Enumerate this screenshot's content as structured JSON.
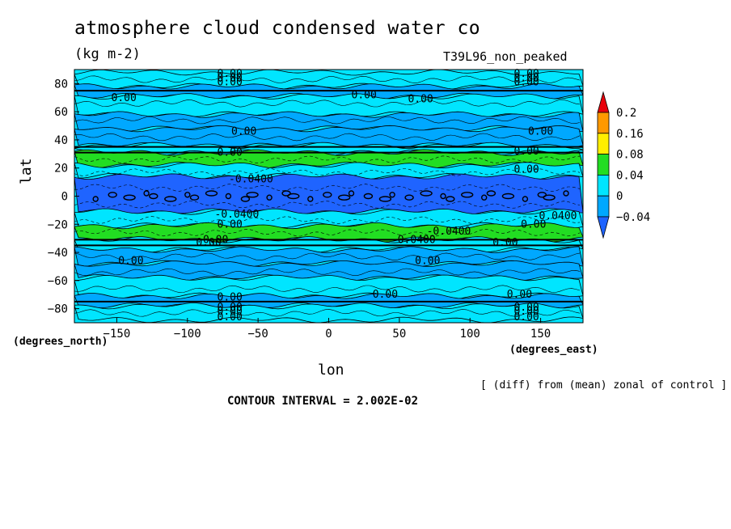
{
  "chart_data": {
    "type": "heatmap",
    "title": "atmosphere cloud condensed water co",
    "units": "(kg m-2)",
    "run_label": "T39L96_non_peaked",
    "xlabel": "lon",
    "ylabel": "lat",
    "x_units": "(degrees_east)",
    "y_units": "(degrees_north)",
    "xlim": [
      -180,
      180
    ],
    "ylim": [
      -90,
      90
    ],
    "x_ticks": [
      -150,
      -100,
      -50,
      0,
      50,
      100,
      150
    ],
    "y_ticks": [
      80,
      60,
      40,
      20,
      0,
      -20,
      -40,
      -60,
      -80
    ],
    "colorbar": {
      "levels": [
        "0.2",
        "0.16",
        "0.08",
        "0.04",
        "0",
        "-0.04"
      ],
      "colors": [
        "#e8000b",
        "#ff9900",
        "#ffee00",
        "#22dd22",
        "#00e5ff",
        "#00a8ff",
        "#1f64ff"
      ]
    },
    "bands": [
      {
        "lat": [
          78,
          88
        ],
        "color": "#00e5ff"
      },
      {
        "lat": [
          71,
          78
        ],
        "color": "#00a8ff"
      },
      {
        "lat": [
          58,
          71
        ],
        "color": "#00e5ff"
      },
      {
        "lat": [
          48,
          58
        ],
        "color": "#00a8ff"
      },
      {
        "lat": [
          36,
          48
        ],
        "color": "#00a8ff"
      },
      {
        "lat": [
          31,
          36
        ],
        "color": "#00e5ff"
      },
      {
        "lat": [
          22,
          31
        ],
        "color": "#22dd22"
      },
      {
        "lat": [
          14,
          22
        ],
        "color": "#00e5ff"
      },
      {
        "lat": [
          -11,
          14
        ],
        "color": "#1f64ff"
      },
      {
        "lat": [
          -21,
          -11
        ],
        "color": "#00e5ff"
      },
      {
        "lat": [
          -31,
          -21
        ],
        "color": "#22dd22"
      },
      {
        "lat": [
          -38,
          -31
        ],
        "color": "#00e5ff"
      },
      {
        "lat": [
          -48,
          -38
        ],
        "color": "#00a8ff"
      },
      {
        "lat": [
          -58,
          -48
        ],
        "color": "#00a8ff"
      },
      {
        "lat": [
          -71,
          -58
        ],
        "color": "#00e5ff"
      },
      {
        "lat": [
          -78,
          -71
        ],
        "color": "#00a8ff"
      },
      {
        "lat": [
          -88,
          -78
        ],
        "color": "#00e5ff"
      }
    ],
    "contour_labels": [
      {
        "text": "0.00",
        "lon": -70,
        "lat": 87
      },
      {
        "text": "0.00",
        "lon": -70,
        "lat": 84
      },
      {
        "text": "0.00",
        "lon": -70,
        "lat": 81
      },
      {
        "text": "0.00",
        "lon": 140,
        "lat": 87
      },
      {
        "text": "0.00",
        "lon": 140,
        "lat": 84
      },
      {
        "text": "0.00",
        "lon": 140,
        "lat": 81
      },
      {
        "text": "0.00",
        "lon": -145,
        "lat": 70
      },
      {
        "text": "0.00",
        "lon": 25,
        "lat": 72
      },
      {
        "text": "0.00",
        "lon": 65,
        "lat": 69
      },
      {
        "text": "0.00",
        "lon": -60,
        "lat": 46
      },
      {
        "text": "0.00",
        "lon": 150,
        "lat": 46
      },
      {
        "text": "0.00",
        "lon": -70,
        "lat": 31
      },
      {
        "text": "0.00",
        "lon": 140,
        "lat": 32
      },
      {
        "text": "0.00",
        "lon": 140,
        "lat": 19
      },
      {
        "text": "-0.0400",
        "lon": -55,
        "lat": 12
      },
      {
        "text": "-0.0400",
        "lon": -65,
        "lat": -13
      },
      {
        "text": "-0.0400",
        "lon": 160,
        "lat": -14
      },
      {
        "text": "0.00",
        "lon": -70,
        "lat": -20
      },
      {
        "text": "0.00",
        "lon": 145,
        "lat": -20
      },
      {
        "text": "-0.0400",
        "lon": 85,
        "lat": -25
      },
      {
        "text": "-0.0400",
        "lon": 60,
        "lat": -31
      },
      {
        "text": "0.00",
        "lon": -85,
        "lat": -33
      },
      {
        "text": "0.00",
        "lon": -80,
        "lat": -31
      },
      {
        "text": "0.00",
        "lon": 125,
        "lat": -33
      },
      {
        "text": "0.00",
        "lon": -140,
        "lat": -46
      },
      {
        "text": "0.00",
        "lon": 70,
        "lat": -46
      },
      {
        "text": "0.00",
        "lon": 40,
        "lat": -70
      },
      {
        "text": "0.00",
        "lon": 135,
        "lat": -70
      },
      {
        "text": "0.00",
        "lon": -70,
        "lat": -72
      },
      {
        "text": "0.00",
        "lon": -70,
        "lat": -79
      },
      {
        "text": "0.00",
        "lon": -70,
        "lat": -82
      },
      {
        "text": "0.00",
        "lon": -70,
        "lat": -86
      },
      {
        "text": "0.00",
        "lon": 140,
        "lat": -79
      },
      {
        "text": "0.00",
        "lon": 140,
        "lat": -82
      },
      {
        "text": "0.00",
        "lon": 140,
        "lat": -86
      }
    ]
  },
  "footer": {
    "note": "[ (diff) from (mean) zonal of control ]",
    "contour_interval": "CONTOUR INTERVAL = 2.002E-02"
  }
}
